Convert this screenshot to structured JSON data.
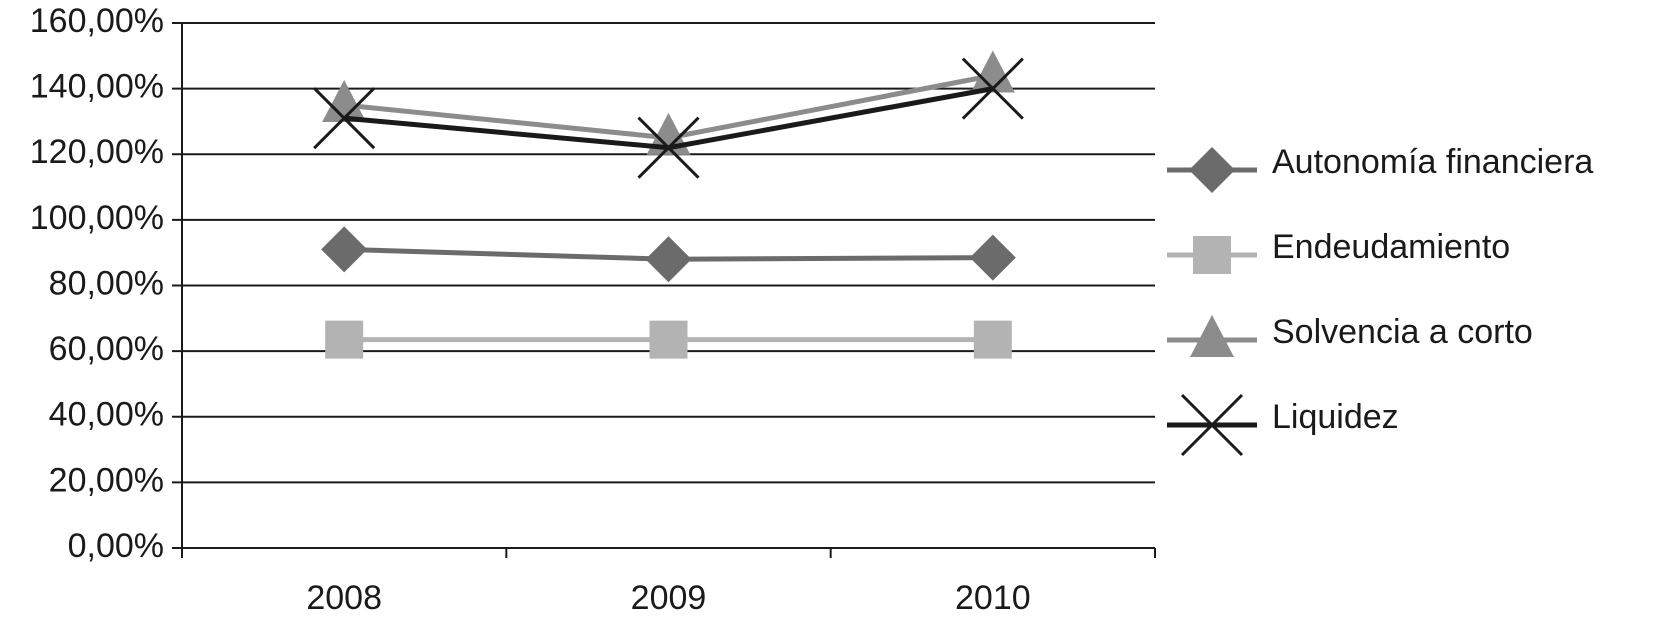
{
  "chart_data": {
    "type": "line",
    "categories": [
      "2008",
      "2009",
      "2010"
    ],
    "series": [
      {
        "name": "Autonomía financiera",
        "color": "#6b6b6b",
        "marker": "diamond",
        "values": [
          91,
          88,
          88.5
        ]
      },
      {
        "name": "Endeudamiento",
        "color": "#b3b3b3",
        "marker": "square",
        "values": [
          63.5,
          63.5,
          63.5
        ]
      },
      {
        "name": "Solvencia a corto",
        "color": "#8c8c8c",
        "marker": "triangle",
        "values": [
          135,
          125,
          144
        ]
      },
      {
        "name": "Liquidez",
        "color": "#1a1a1a",
        "marker": "x",
        "values": [
          131,
          122,
          140
        ]
      }
    ],
    "ylim": [
      0,
      160
    ],
    "yticks": [
      {
        "value": 0,
        "label": "0,00%"
      },
      {
        "value": 20,
        "label": "20,00%"
      },
      {
        "value": 40,
        "label": "40,00%"
      },
      {
        "value": 60,
        "label": "60,00%"
      },
      {
        "value": 80,
        "label": "80,00%"
      },
      {
        "value": 100,
        "label": "100,00%"
      },
      {
        "value": 120,
        "label": "120,00%"
      },
      {
        "value": 140,
        "label": "140,00%"
      },
      {
        "value": 160,
        "label": "160,00%"
      }
    ],
    "grid": true,
    "legend": "right"
  }
}
